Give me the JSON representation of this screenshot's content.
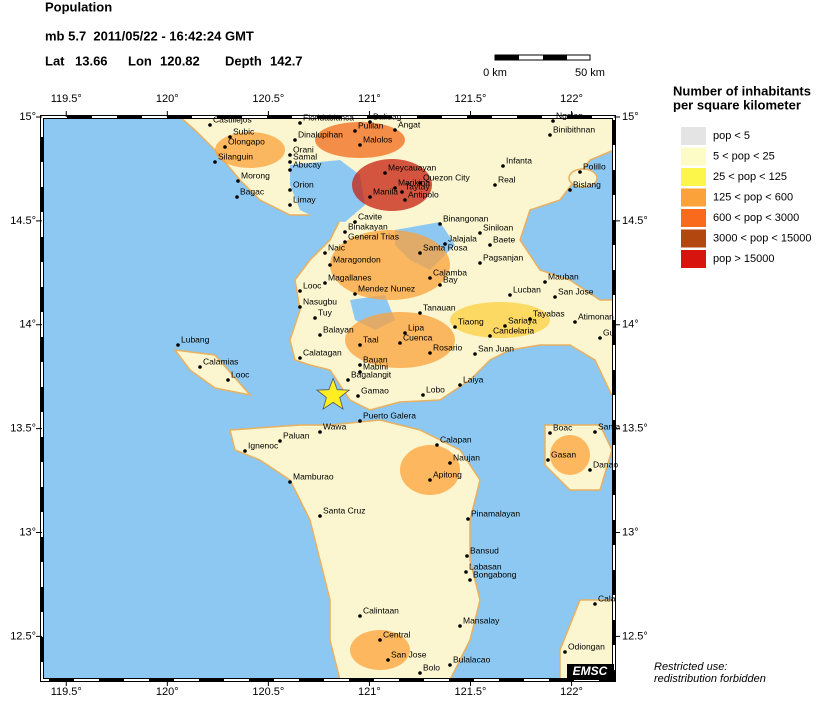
{
  "header": {
    "title": "Population",
    "line2": "mb 5.7  2011/05/22 - 16:42:24 GMT"
  },
  "event": {
    "lat_label": "Lat",
    "lat": 13.66,
    "lon_label": "Lon",
    "lon": 120.82,
    "depth_label": "Depth",
    "depth": 142.7
  },
  "scale_bar": {
    "start": "0 km",
    "end": "50 km"
  },
  "map": {
    "lonlim": [
      119.38,
      122.21
    ],
    "latlim": [
      12.29,
      15
    ],
    "lonticks": [
      {
        "value": 119.5,
        "label": "119.5°"
      },
      {
        "value": 120,
        "label": "120°"
      },
      {
        "value": 120.5,
        "label": "120.5°"
      },
      {
        "value": 121,
        "label": "121°"
      },
      {
        "value": 121.5,
        "label": "121.5°"
      },
      {
        "value": 122,
        "label": "122°"
      }
    ],
    "latticks": [
      {
        "value": 15,
        "label": "15°"
      },
      {
        "value": 14.5,
        "label": "14.5°"
      },
      {
        "value": 14,
        "label": "14°"
      },
      {
        "value": 13.5,
        "label": "13.5°"
      },
      {
        "value": 13,
        "label": "13°"
      },
      {
        "value": 12.5,
        "label": "12.5°"
      }
    ],
    "places": [
      "Castillejos",
      "Subic",
      "Olongapo",
      "Dinalupihan",
      "Floridablanca",
      "Baliuag",
      "Pulilan",
      "Angat",
      "Malolos",
      "Orani",
      "Samal",
      "Abucay",
      "Silanguin",
      "Morong",
      "Bagac",
      "Orion",
      "Limay",
      "Meycauayan",
      "Quezon City",
      "Marikina",
      "Manila",
      "Taytay",
      "Antipolo",
      "Cavite",
      "Binakayan",
      "General Trias",
      "Santa Rosa",
      "Binangonan",
      "Jalajala",
      "Siniloan",
      "Baete",
      "Pagsanjan",
      "Infanta",
      "Real",
      "Ngalan",
      "Binibithnan",
      "Polillo",
      "Bislang",
      "Naic",
      "Maragondon",
      "Looc",
      "Magallanes",
      "Mendez Nunez",
      "Calamba",
      "Bay",
      "Lucban",
      "Mauban",
      "San Jose",
      "Nasugbu",
      "Tuy",
      "Balayan",
      "Calatagan",
      "Tanauan",
      "Lipa",
      "Cuenca",
      "Taal",
      "Rosario",
      "San Juan",
      "Tiaong",
      "Candelaria",
      "Sariaya",
      "Tayabas",
      "Atimonan",
      "Bauan",
      "Mabini",
      "Bagalangit",
      "Gamao",
      "Lobo",
      "Laiya",
      "Lubang",
      "Calamias",
      "Looc",
      "Puerto Galera",
      "Wawa",
      "Paluan",
      "Ignenoc",
      "Calapan",
      "Naujan",
      "Apitong",
      "Pinamalayan",
      "Mamburao",
      "Santa Cruz",
      "Bansud",
      "Labasan",
      "Bongabong",
      "Calintaan",
      "Mansalay",
      "Central",
      "San Jose",
      "Bulalacao",
      "Bolo",
      "Boac",
      "Gasan",
      "Santa",
      "Danao",
      "Cala",
      "Odiongan",
      "Gui"
    ]
  },
  "legend": {
    "title_line1": "Number of inhabitants",
    "title_line2": "per square kilometer",
    "items": [
      {
        "label": "pop < 5",
        "color": "#e4e4e4"
      },
      {
        "label": "5 < pop < 25",
        "color": "#fdfbc6"
      },
      {
        "label": "25 < pop < 125",
        "color": "#fdf64a"
      },
      {
        "label": "125 < pop < 600",
        "color": "#fca23a"
      },
      {
        "label": "600 < pop < 3000",
        "color": "#fa6a1c"
      },
      {
        "label": "3000 < pop < 15000",
        "color": "#b24810"
      },
      {
        "label": "pop > 15000",
        "color": "#d8140e"
      }
    ]
  },
  "footer": {
    "logo": "EMSC",
    "line1": "Restricted use:",
    "line2": "redistribution forbidden"
  }
}
